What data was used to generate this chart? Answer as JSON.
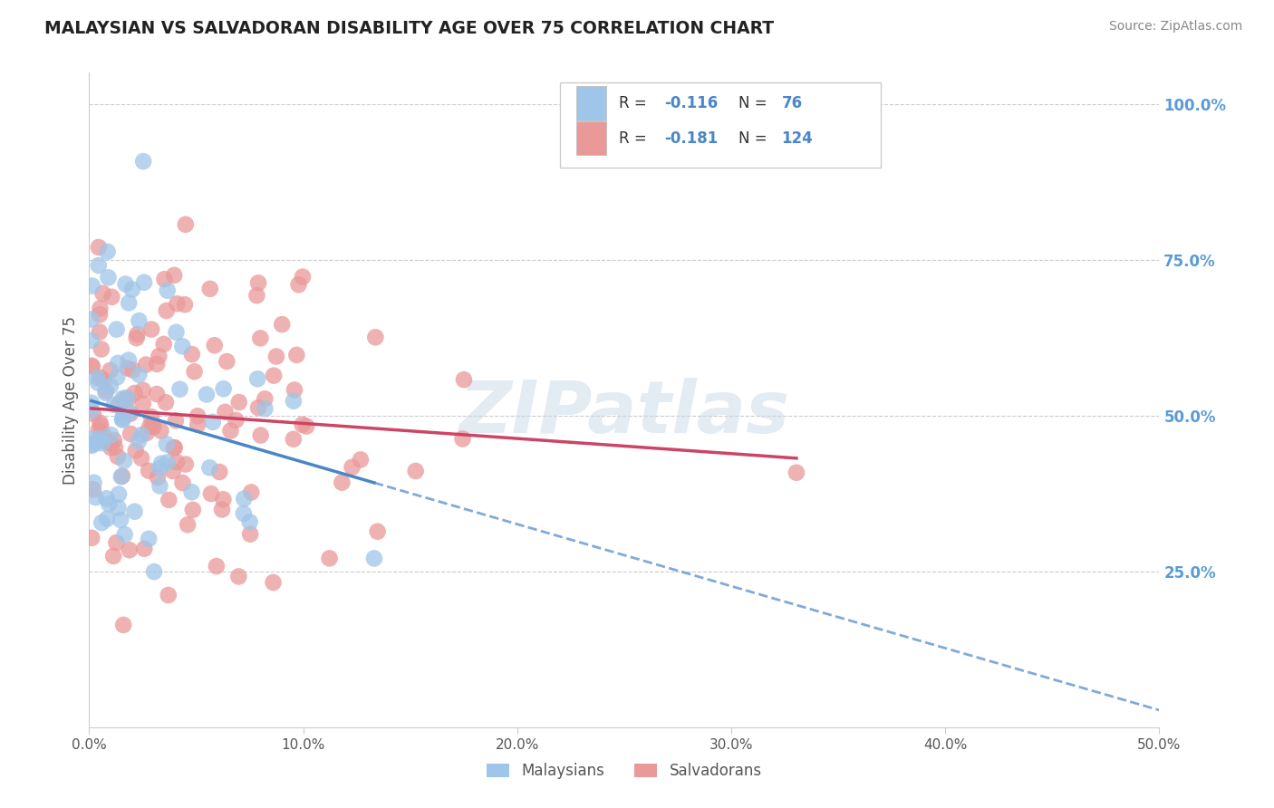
{
  "title": "MALAYSIAN VS SALVADORAN DISABILITY AGE OVER 75 CORRELATION CHART",
  "source_text": "Source: ZipAtlas.com",
  "ylabel": "Disability Age Over 75",
  "xlim": [
    0.0,
    0.5
  ],
  "ylim": [
    0.0,
    1.05
  ],
  "xtick_vals": [
    0.0,
    0.1,
    0.2,
    0.3,
    0.4,
    0.5
  ],
  "xtick_labels": [
    "0.0%",
    "10.0%",
    "20.0%",
    "30.0%",
    "40.0%",
    "50.0%"
  ],
  "ytick_positions": [
    0.25,
    0.5,
    0.75,
    1.0
  ],
  "ytick_labels": [
    "25.0%",
    "50.0%",
    "75.0%",
    "100.0%"
  ],
  "blue_scatter_color": "#9fc5e8",
  "pink_scatter_color": "#ea9999",
  "blue_line_color": "#4a86c8",
  "pink_line_color": "#cc4466",
  "watermark": "ZIPatlas",
  "blue_r": -0.116,
  "pink_r": -0.181,
  "blue_n": 76,
  "pink_n": 124,
  "legend_r1": "R = -0.116",
  "legend_r2": "R = -0.181",
  "legend_n1": "76",
  "legend_n2": "124",
  "tick_color": "#5b9bd5",
  "grid_color": "#cccccc",
  "title_color": "#222222",
  "source_color": "#888888",
  "ylabel_color": "#555555"
}
